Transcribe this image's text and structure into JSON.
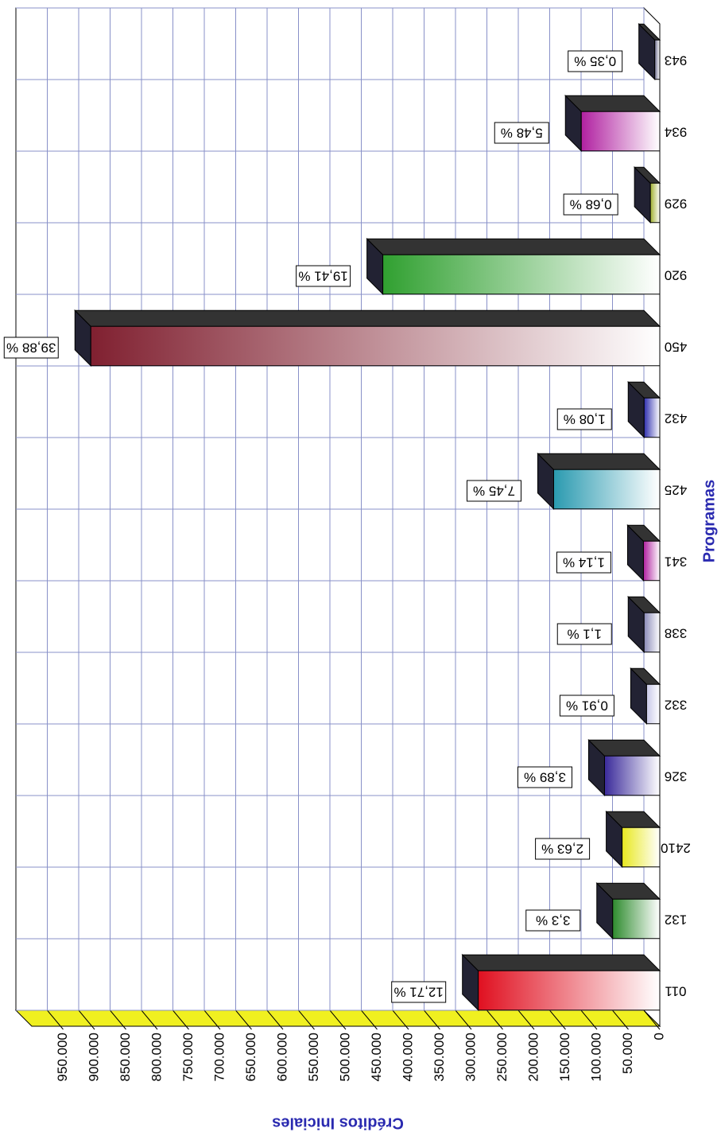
{
  "chart_data": {
    "type": "bar3d",
    "x_label": "Programas",
    "y_label": "Créditos Iniciales",
    "categories": [
      "011",
      "132",
      "2410",
      "326",
      "332",
      "338",
      "341",
      "425",
      "432",
      "450",
      "920",
      "929",
      "934",
      "943"
    ],
    "values": [
      289000,
      75000,
      60000,
      88000,
      21000,
      25000,
      26000,
      169000,
      25000,
      906000,
      441000,
      15000,
      125000,
      8000
    ],
    "data_labels": [
      "12,71 %",
      "3,3 %",
      "2,63 %",
      "3,89 %",
      "0,91 %",
      "1,1 %",
      "1,14 %",
      "7,45 %",
      "1,08 %",
      "39,88 %",
      "19,41 %",
      "0,68 %",
      "5,48 %",
      "0,35 %"
    ],
    "colors": [
      "#e01020",
      "#2e8b2e",
      "#e8e820",
      "#3a2a9a",
      "#c8c8e8",
      "#8a8ab8",
      "#b020a0",
      "#2a9ab0",
      "#3030b0",
      "#802030",
      "#30a030",
      "#a0b030",
      "#b020a0",
      "#707090"
    ],
    "ylim": [
      0,
      1000000
    ],
    "yticks": [
      0,
      {
        "value": 50000,
        "label": "50.000"
      },
      {
        "value": 100000,
        "label": "100.000"
      },
      {
        "value": 150000,
        "label": "150.000"
      },
      {
        "value": 200000,
        "label": "200.000"
      },
      {
        "value": 250000,
        "label": "250.000"
      },
      {
        "value": 300000,
        "label": "300.000"
      },
      {
        "value": 350000,
        "label": "350.000"
      },
      {
        "value": 400000,
        "label": "400.000"
      },
      {
        "value": 450000,
        "label": "450.000"
      },
      {
        "value": 500000,
        "label": "500.000"
      },
      {
        "value": 550000,
        "label": "550.000"
      },
      {
        "value": 600000,
        "label": "600.000"
      },
      {
        "value": 650000,
        "label": "650.000"
      },
      {
        "value": 700000,
        "label": "700.000"
      },
      {
        "value": 750000,
        "label": "750.000"
      },
      {
        "value": 800000,
        "label": "800.000"
      },
      {
        "value": 850000,
        "label": "850.000"
      },
      {
        "value": 900000,
        "label": "900.000"
      },
      {
        "value": 950000,
        "label": "950.000"
      }
    ],
    "grid": true
  }
}
